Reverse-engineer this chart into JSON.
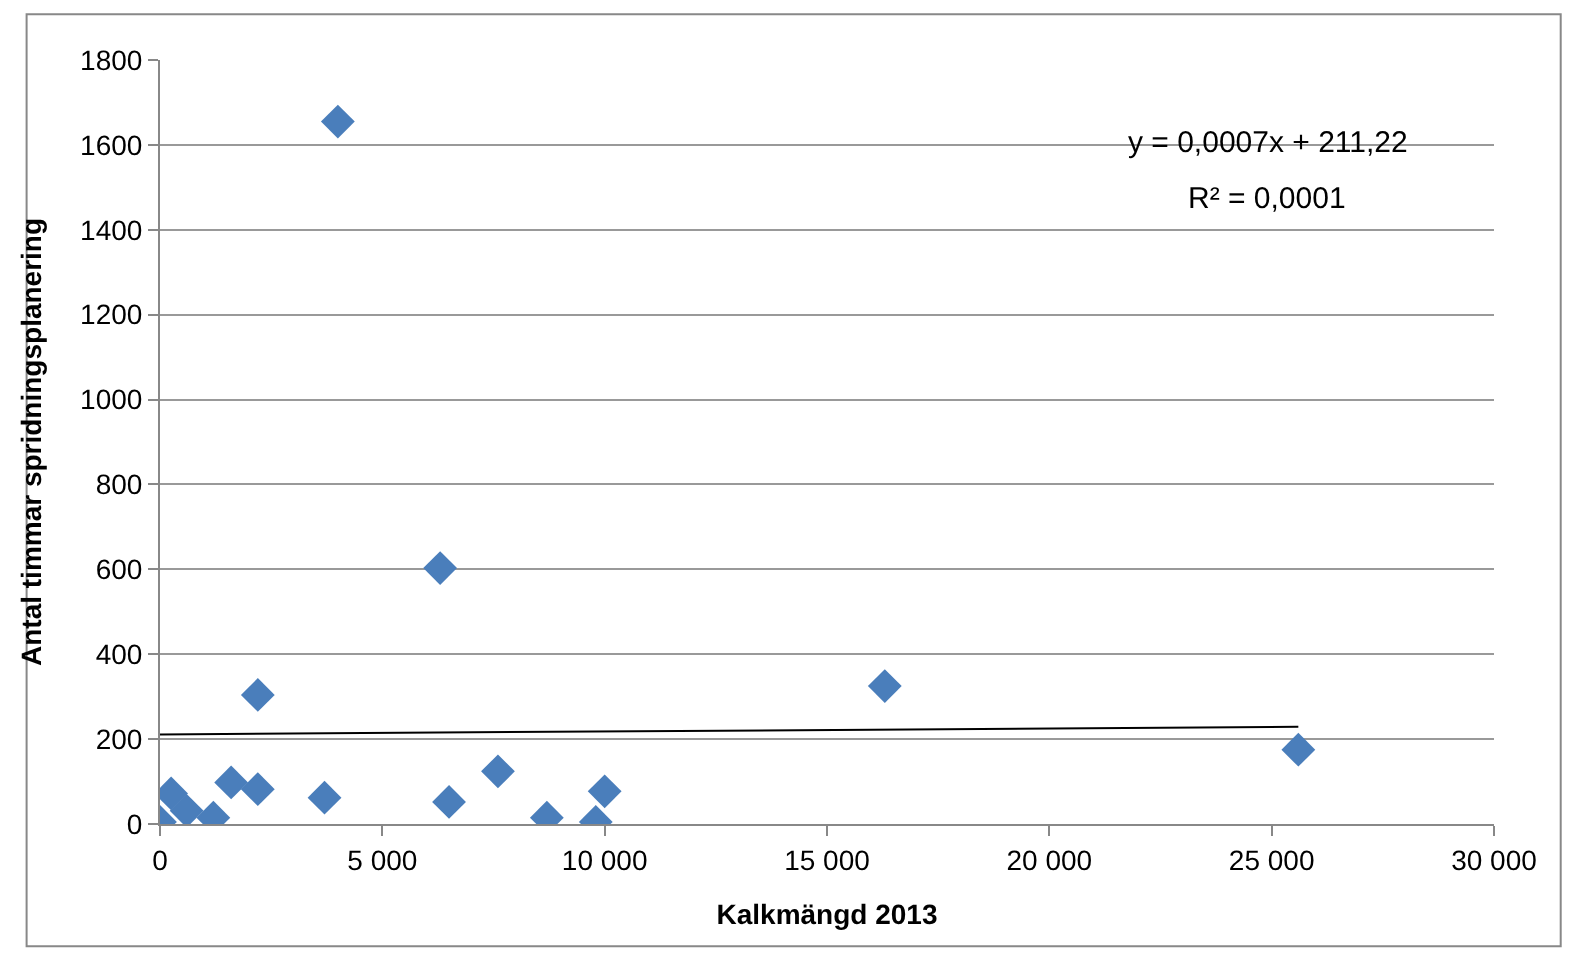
{
  "chart_data": {
    "type": "scatter",
    "xlabel": "Kalkmängd 2013",
    "ylabel": "Antal timmar spridningsplanering",
    "xlim": [
      0,
      30000
    ],
    "ylim": [
      0,
      1800
    ],
    "xticks": [
      {
        "value": 0,
        "label": "0"
      },
      {
        "value": 5000,
        "label": "5 000"
      },
      {
        "value": 10000,
        "label": "10 000"
      },
      {
        "value": 15000,
        "label": "15 000"
      },
      {
        "value": 20000,
        "label": "20 000"
      },
      {
        "value": 25000,
        "label": "25 000"
      },
      {
        "value": 30000,
        "label": "30 000"
      }
    ],
    "yticks": [
      0,
      200,
      400,
      600,
      800,
      1000,
      1200,
      1400,
      1600,
      1800
    ],
    "grid": "y",
    "marker": "diamond",
    "series": [
      {
        "color": "#4a7ebb",
        "x": [
          0,
          250,
          600,
          1200,
          1600,
          2200,
          2200,
          3700,
          4000,
          6300,
          6500,
          7600,
          8700,
          9800,
          10000,
          16300,
          25600
        ],
        "values": [
          5,
          72,
          31,
          15,
          98,
          82,
          304,
          62,
          1655,
          603,
          52,
          124,
          15,
          5,
          77,
          325,
          175
        ]
      },
      {
        "type": "line",
        "color": "#000000",
        "marker": "none",
        "x": [
          0,
          25600
        ],
        "values": [
          211,
          229
        ]
      }
    ],
    "annotations": [
      "y = 0,0007x + 211,22",
      "R² = 0,0001"
    ]
  }
}
